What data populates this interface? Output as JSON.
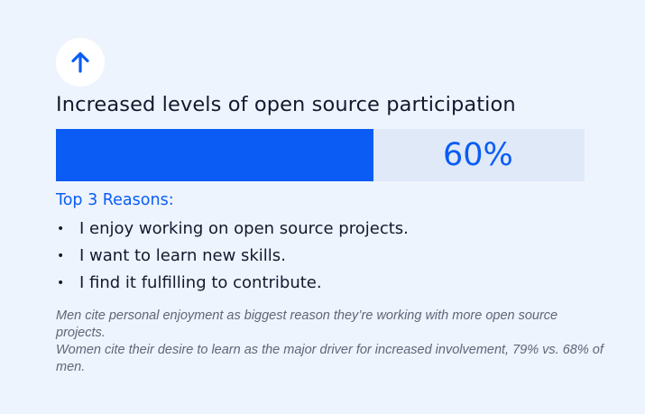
{
  "colors": {
    "background": "#eef4fd",
    "accent": "#0a5cf5",
    "track": "#dfe9f8",
    "text": "#131a2e",
    "note_text": "#5f6678"
  },
  "icon": "arrow-up-icon",
  "headline": "Increased levels of open source participation",
  "chart_data": {
    "type": "bar",
    "orientation": "horizontal",
    "categories": [
      "Increased levels of open source participation"
    ],
    "values": [
      60
    ],
    "value_label": "60%",
    "unit": "%",
    "xlim": [
      0,
      100
    ]
  },
  "reasons": {
    "title": "Top 3 Reasons:",
    "bullet": "•",
    "items": [
      "I enjoy working on open source projects.",
      "I want to learn new skills.",
      "I find it fulfilling to contribute."
    ]
  },
  "notes": [
    "Men cite personal enjoyment as biggest reason they’re working with more open source projects.",
    "Women cite their desire to learn as the major driver for increased involvement, 79% vs. 68% of men."
  ]
}
